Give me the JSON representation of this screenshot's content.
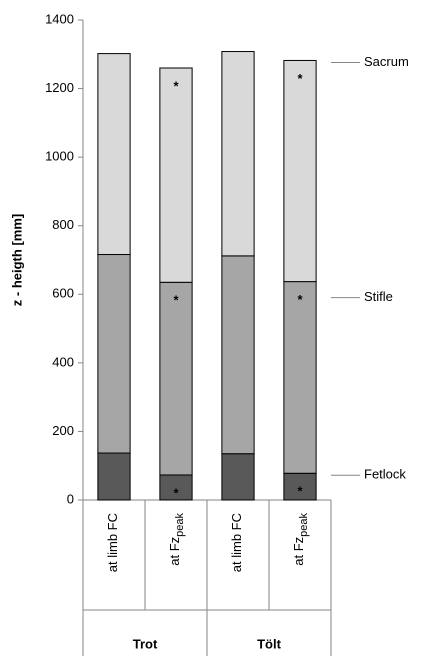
{
  "chart_data": {
    "type": "stacked_bar",
    "y_label": "z - heigth [mm]",
    "categories": [
      "at limb FC",
      "at Fz",
      "at limb FC",
      "at Fz"
    ],
    "category_subscripts": [
      null,
      "peak",
      null,
      "peak"
    ],
    "groups": [
      {
        "label": "Trot",
        "span": 2
      },
      {
        "label": "Tölt",
        "span": 2
      }
    ],
    "series": [
      {
        "name": "Fetlock",
        "color": "#595959",
        "values": [
          137,
          73,
          135,
          78
        ]
      },
      {
        "name": "Stifle",
        "color": "#a6a6a6",
        "values": [
          579,
          562,
          577,
          559
        ]
      },
      {
        "name": "Sacrum",
        "color": "#d9d9d9",
        "values": [
          586,
          625,
          596,
          645
        ]
      }
    ],
    "significance_marks": [
      {
        "text": "*",
        "series": 2,
        "category": 1,
        "color": "#000000"
      },
      {
        "text": "*",
        "series": 1,
        "category": 1,
        "color": "#ffffff"
      },
      {
        "text": "*",
        "series": 0,
        "category": 1,
        "color": "#ffffff"
      },
      {
        "text": "*",
        "series": 2,
        "category": 3,
        "color": "#000000"
      },
      {
        "text": "*",
        "series": 1,
        "category": 3,
        "color": "#ffffff"
      },
      {
        "text": "*",
        "series": 0,
        "category": 3,
        "color": "#ffffff"
      }
    ],
    "ylim": [
      0,
      1400
    ],
    "yticks": [
      0,
      200,
      400,
      600,
      800,
      1000,
      1200,
      1400
    ],
    "grid": false
  }
}
